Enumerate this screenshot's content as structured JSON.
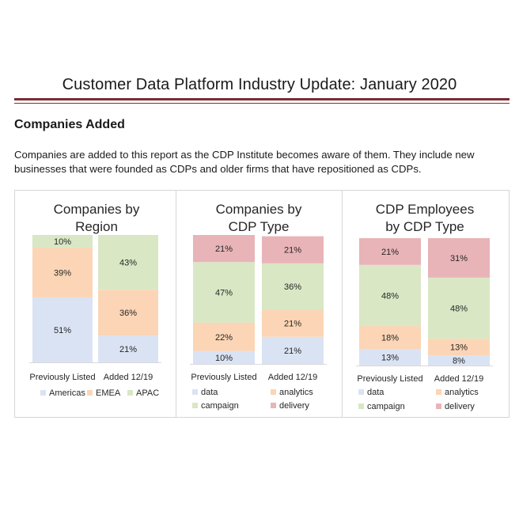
{
  "header": {
    "title": "Customer Data Platform Industry Update: January 2020",
    "section_title": "Companies Added",
    "paragraph": "Companies are added to this report as the CDP Institute becomes aware of them.  They include new businesses that were founded as CDPs and older firms that have repositioned as CDPs."
  },
  "colors": {
    "Americas": "#dae3f3",
    "EMEA": "#fbd5b5",
    "APAC": "#d9e7c4",
    "data": "#dae3f3",
    "analytics": "#fbd5b5",
    "campaign": "#d9e7c4",
    "delivery": "#e8b4b8"
  },
  "chart_data": [
    {
      "type": "bar",
      "stacked": true,
      "percent": true,
      "title_lines": [
        "Companies by",
        "Region"
      ],
      "categories": [
        "Previously Listed",
        "Added 12/19"
      ],
      "series": [
        {
          "name": "Americas",
          "values": [
            51,
            21
          ]
        },
        {
          "name": "EMEA",
          "values": [
            39,
            36
          ]
        },
        {
          "name": "APAC",
          "values": [
            10,
            43
          ]
        }
      ],
      "legend_rows": [
        [
          "Americas",
          "EMEA",
          "APAC"
        ]
      ],
      "ylim": [
        0,
        100
      ]
    },
    {
      "type": "bar",
      "stacked": true,
      "percent": true,
      "title_lines": [
        "Companies by",
        "CDP Type"
      ],
      "categories": [
        "Previously Listed",
        "Added 12/19"
      ],
      "series": [
        {
          "name": "data",
          "values": [
            10,
            21
          ]
        },
        {
          "name": "analytics",
          "values": [
            22,
            21
          ]
        },
        {
          "name": "campaign",
          "values": [
            47,
            36
          ]
        },
        {
          "name": "delivery",
          "values": [
            21,
            21
          ]
        }
      ],
      "legend_rows": [
        [
          "data",
          "analytics"
        ],
        [
          "campaign",
          "delivery"
        ]
      ],
      "ylim": [
        0,
        100
      ]
    },
    {
      "type": "bar",
      "stacked": true,
      "percent": true,
      "title_lines": [
        "CDP Employees",
        "by CDP Type"
      ],
      "categories": [
        "Previously Listed",
        "Added 12/19"
      ],
      "series": [
        {
          "name": "data",
          "values": [
            13,
            8
          ]
        },
        {
          "name": "analytics",
          "values": [
            18,
            13
          ]
        },
        {
          "name": "campaign",
          "values": [
            48,
            48
          ]
        },
        {
          "name": "delivery",
          "values": [
            21,
            31
          ]
        }
      ],
      "legend_rows": [
        [
          "data",
          "analytics"
        ],
        [
          "campaign",
          "delivery"
        ]
      ],
      "ylim": [
        0,
        100
      ]
    }
  ]
}
